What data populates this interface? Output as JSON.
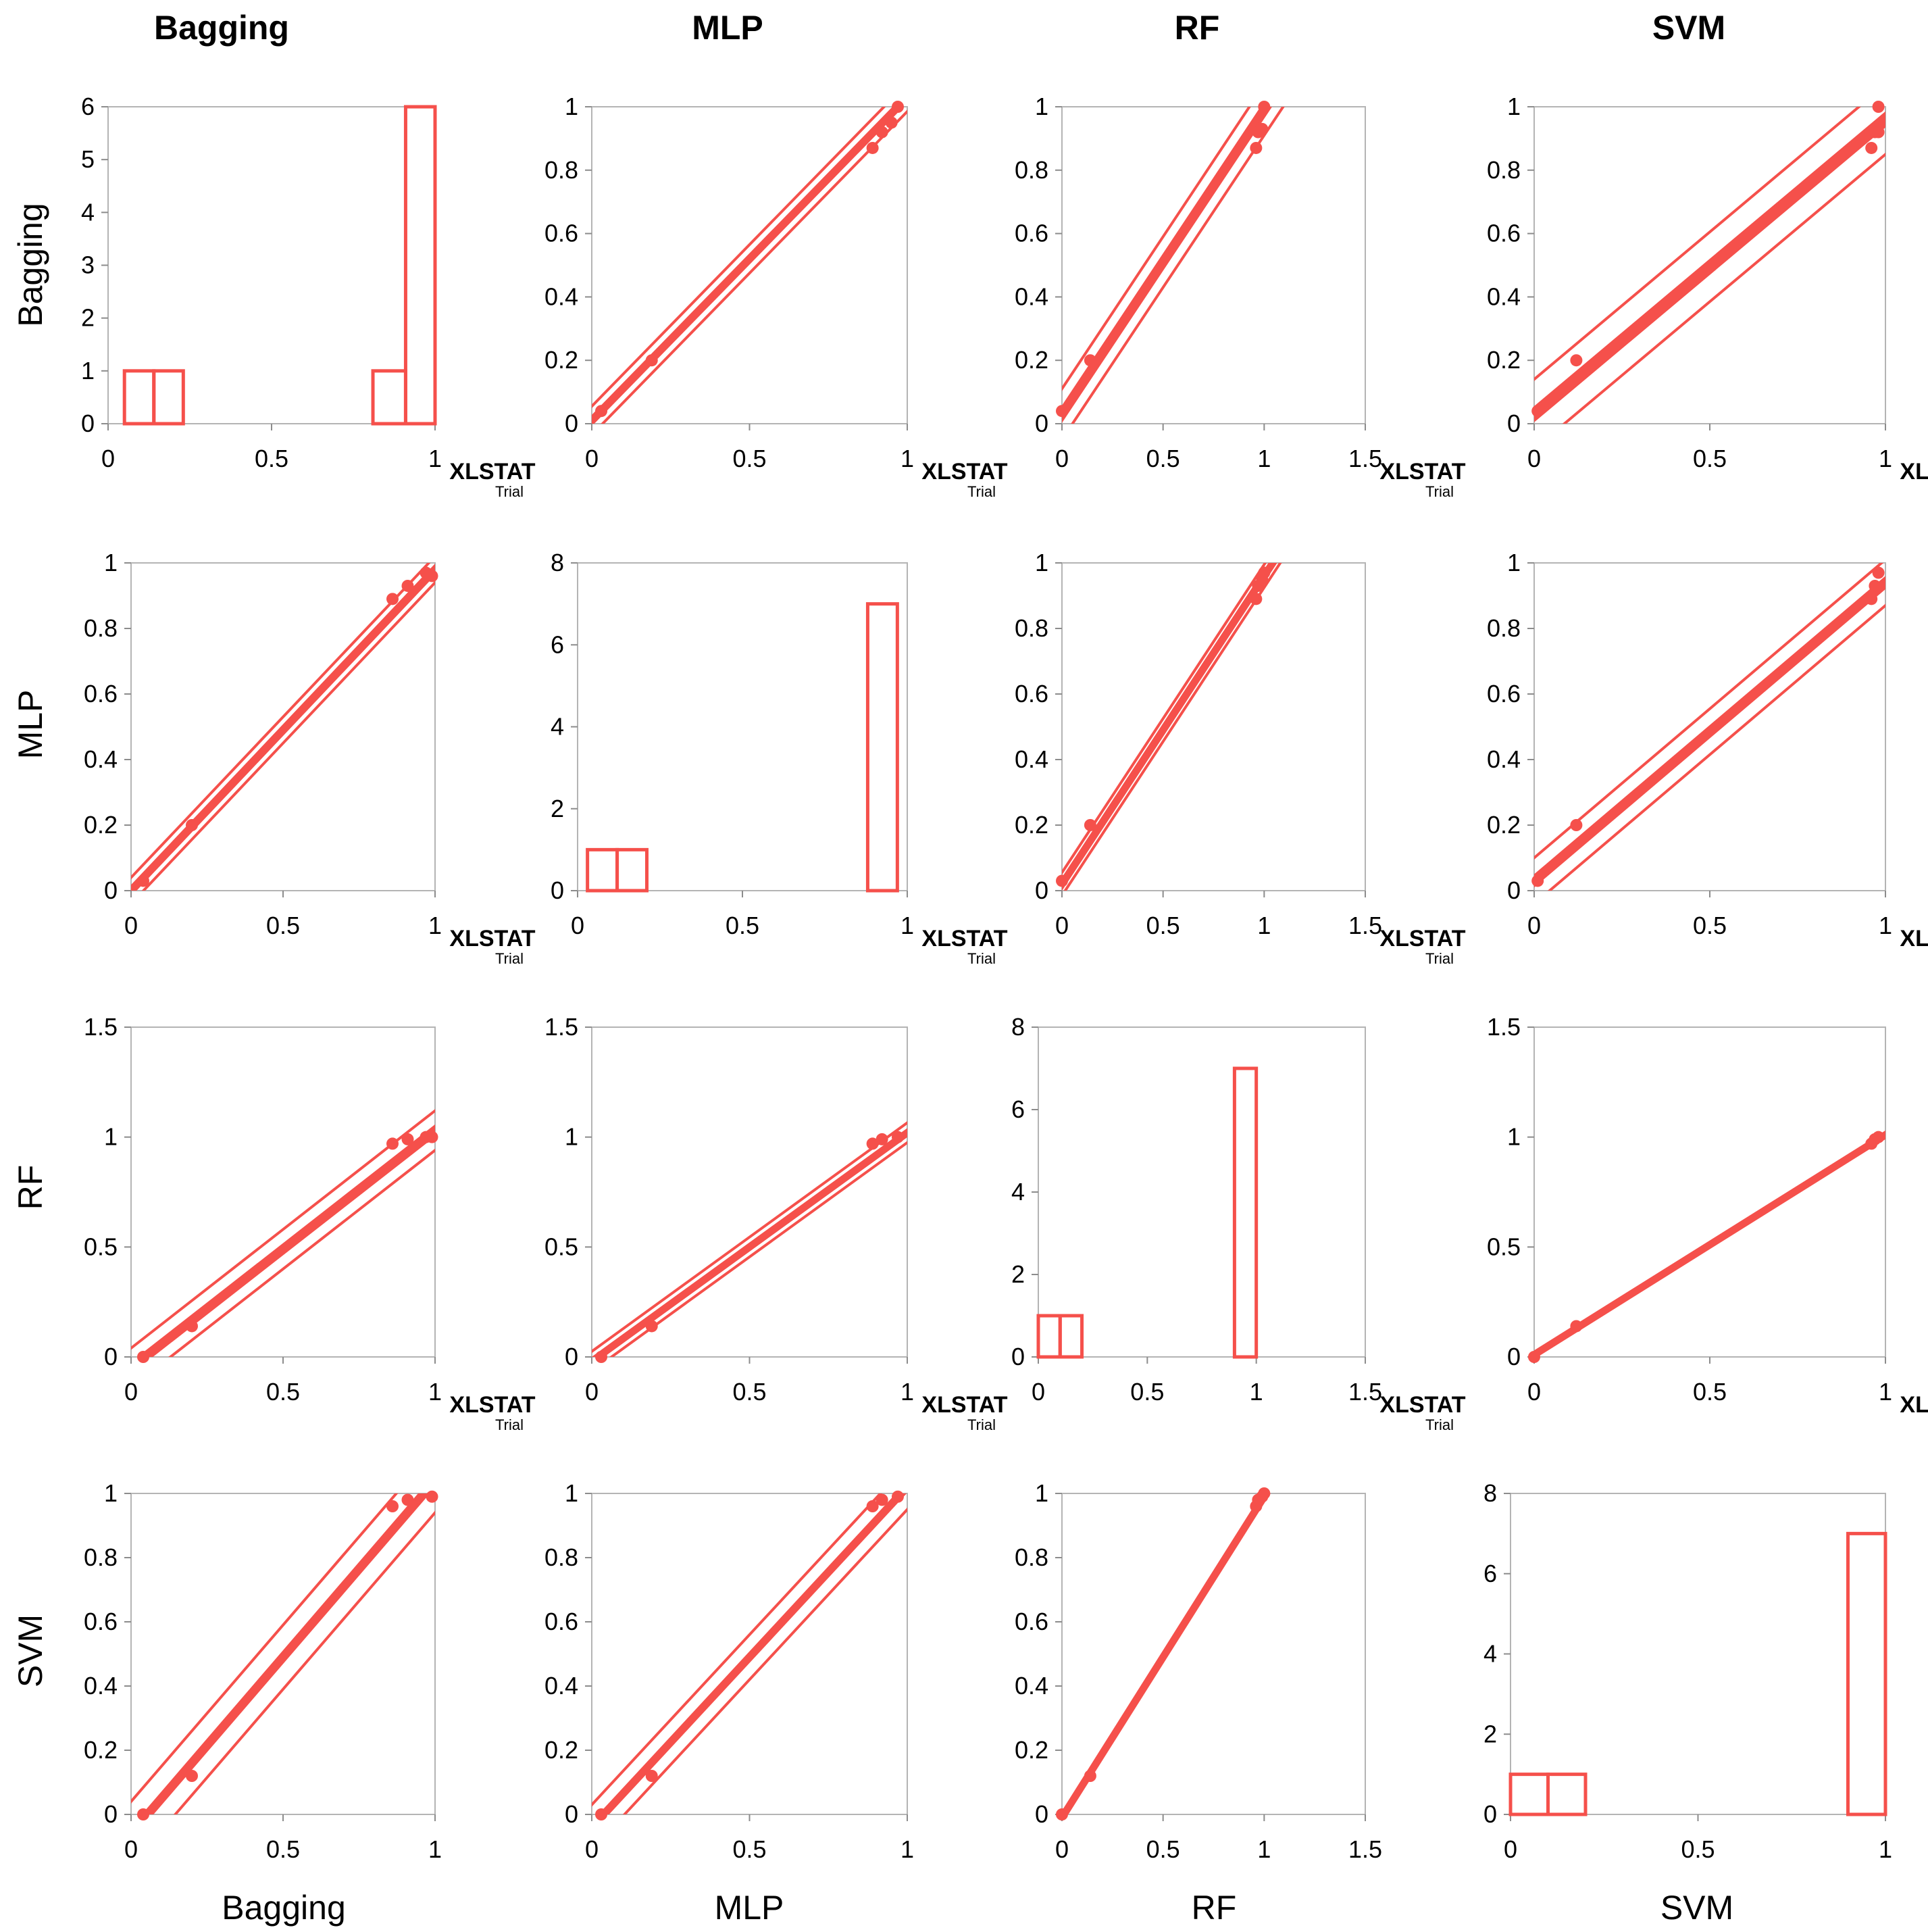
{
  "chart_data": {
    "type": "scatter_matrix",
    "variables": [
      "Bagging",
      "MLP",
      "RF",
      "SVM"
    ],
    "column_titles": [
      "Bagging",
      "MLP",
      "RF",
      "SVM"
    ],
    "row_titles": [
      "Bagging",
      "MLP",
      "RF",
      "SVM"
    ],
    "x_titles": [
      "Bagging",
      "MLP",
      "RF",
      "SVM"
    ],
    "color": "#f5504b",
    "watermark": {
      "line1": "XLSTAT",
      "line2": "Trial"
    },
    "panels": [
      {
        "row": 0,
        "col": 0,
        "type": "histogram",
        "xlim": [
          0,
          1
        ],
        "xticks": [
          0,
          0.5,
          1
        ],
        "xtick_labels": [
          "0",
          "0.5",
          "1"
        ],
        "ylim": [
          0,
          6
        ],
        "yticks": [
          0,
          1,
          2,
          3,
          4,
          5,
          6
        ],
        "ytick_labels": [
          "0",
          "1",
          "2",
          "3",
          "4",
          "5",
          "6"
        ],
        "bins": [
          [
            0.05,
            0.14,
            1
          ],
          [
            0.14,
            0.23,
            1
          ],
          [
            0.23,
            0.81,
            0
          ],
          [
            0.81,
            0.91,
            1
          ],
          [
            0.91,
            1.0,
            6
          ]
        ]
      },
      {
        "row": 0,
        "col": 1,
        "type": "scatter",
        "xlim": [
          0,
          1
        ],
        "xticks": [
          0,
          0.5,
          1
        ],
        "xtick_labels": [
          "0",
          "0.5",
          "1"
        ],
        "ylim": [
          0,
          1
        ],
        "yticks": [
          0,
          0.2,
          0.4,
          0.6,
          0.8,
          1
        ],
        "ytick_labels": [
          "0",
          "0.2",
          "0.4",
          "0.6",
          "0.8",
          "1"
        ],
        "points": [
          [
            0.03,
            0.04
          ],
          [
            0.19,
            0.2
          ],
          [
            0.89,
            0.87
          ],
          [
            0.92,
            0.92
          ],
          [
            0.95,
            0.95
          ],
          [
            0.97,
            1.0
          ]
        ],
        "fit": {
          "slope": 1.02,
          "intercept": 0.01
        },
        "conf_band": 0.012,
        "pred_band": 0.045
      },
      {
        "row": 0,
        "col": 2,
        "type": "scatter",
        "xlim": [
          0,
          1.5
        ],
        "xticks": [
          0,
          0.5,
          1,
          1.5
        ],
        "xtick_labels": [
          "0",
          "0.5",
          "1",
          "1.5"
        ],
        "ylim": [
          0,
          1
        ],
        "yticks": [
          0,
          0.2,
          0.4,
          0.6,
          0.8,
          1
        ],
        "ytick_labels": [
          "0",
          "0.2",
          "0.4",
          "0.6",
          "0.8",
          "1"
        ],
        "points": [
          [
            0.0,
            0.04
          ],
          [
            0.14,
            0.2
          ],
          [
            0.96,
            0.87
          ],
          [
            0.97,
            0.92
          ],
          [
            0.99,
            0.93
          ],
          [
            1.0,
            1.0
          ]
        ],
        "fit": {
          "slope": 0.96,
          "intercept": 0.03
        },
        "conf_band": 0.02,
        "pred_band": 0.08
      },
      {
        "row": 0,
        "col": 3,
        "type": "scatter",
        "xlim": [
          0,
          1
        ],
        "xticks": [
          0,
          0.5,
          1
        ],
        "xtick_labels": [
          "0",
          "0.5",
          "1"
        ],
        "ylim": [
          0,
          1
        ],
        "yticks": [
          0,
          0.2,
          0.4,
          0.6,
          0.8,
          1
        ],
        "ytick_labels": [
          "0",
          "0.2",
          "0.4",
          "0.6",
          "0.8",
          "1"
        ],
        "points": [
          [
            0.01,
            0.04
          ],
          [
            0.12,
            0.2
          ],
          [
            0.96,
            0.87
          ],
          [
            0.97,
            0.92
          ],
          [
            0.98,
            0.92
          ],
          [
            0.98,
            1.0
          ]
        ],
        "fit": {
          "slope": 0.93,
          "intercept": 0.03
        },
        "conf_band": 0.02,
        "pred_band": 0.11
      },
      {
        "row": 1,
        "col": 0,
        "type": "scatter",
        "xlim": [
          0,
          1
        ],
        "xticks": [
          0,
          0.5,
          1
        ],
        "xtick_labels": [
          "0",
          "0.5",
          "1"
        ],
        "ylim": [
          0,
          1
        ],
        "yticks": [
          0,
          0.2,
          0.4,
          0.6,
          0.8,
          1
        ],
        "ytick_labels": [
          "0",
          "0.2",
          "0.4",
          "0.6",
          "0.8",
          "1"
        ],
        "points": [
          [
            0.04,
            0.03
          ],
          [
            0.2,
            0.2
          ],
          [
            0.86,
            0.89
          ],
          [
            0.91,
            0.93
          ],
          [
            0.97,
            0.97
          ],
          [
            0.99,
            0.96
          ]
        ],
        "fit": {
          "slope": 0.98,
          "intercept": 0.0
        },
        "conf_band": 0.012,
        "pred_band": 0.04
      },
      {
        "row": 1,
        "col": 1,
        "type": "histogram",
        "xlim": [
          0,
          1
        ],
        "xticks": [
          0,
          0.5,
          1
        ],
        "xtick_labels": [
          "0",
          "0.5",
          "1"
        ],
        "ylim": [
          0,
          8
        ],
        "yticks": [
          0,
          2,
          4,
          6,
          8
        ],
        "ytick_labels": [
          "0",
          "2",
          "4",
          "6",
          "8"
        ],
        "bins": [
          [
            0.03,
            0.12,
            1
          ],
          [
            0.12,
            0.21,
            1
          ],
          [
            0.21,
            0.88,
            0
          ],
          [
            0.88,
            0.97,
            7
          ]
        ]
      },
      {
        "row": 1,
        "col": 2,
        "type": "scatter",
        "xlim": [
          0,
          1.5
        ],
        "xticks": [
          0,
          0.5,
          1,
          1.5
        ],
        "xtick_labels": [
          "0",
          "0.5",
          "1",
          "1.5"
        ],
        "ylim": [
          0,
          1
        ],
        "yticks": [
          0,
          0.2,
          0.4,
          0.6,
          0.8,
          1
        ],
        "ytick_labels": [
          "0",
          "0.2",
          "0.4",
          "0.6",
          "0.8",
          "1"
        ],
        "points": [
          [
            0.0,
            0.03
          ],
          [
            0.14,
            0.2
          ],
          [
            0.96,
            0.89
          ],
          [
            0.97,
            0.93
          ],
          [
            0.99,
            0.95
          ],
          [
            1.0,
            0.97
          ]
        ],
        "fit": {
          "slope": 0.94,
          "intercept": 0.02
        },
        "conf_band": 0.01,
        "pred_band": 0.035
      },
      {
        "row": 1,
        "col": 3,
        "type": "scatter",
        "xlim": [
          0,
          1
        ],
        "xticks": [
          0,
          0.5,
          1
        ],
        "xtick_labels": [
          "0",
          "0.5",
          "1"
        ],
        "ylim": [
          0,
          1
        ],
        "yticks": [
          0,
          0.2,
          0.4,
          0.6,
          0.8,
          1
        ],
        "ytick_labels": [
          "0",
          "0.2",
          "0.4",
          "0.6",
          "0.8",
          "1"
        ],
        "points": [
          [
            0.01,
            0.03
          ],
          [
            0.12,
            0.2
          ],
          [
            0.96,
            0.89
          ],
          [
            0.97,
            0.93
          ],
          [
            0.98,
            0.97
          ]
        ],
        "fit": {
          "slope": 0.91,
          "intercept": 0.03
        },
        "conf_band": 0.015,
        "pred_band": 0.07
      },
      {
        "row": 2,
        "col": 0,
        "type": "scatter",
        "xlim": [
          0,
          1
        ],
        "xticks": [
          0,
          0.5,
          1
        ],
        "xtick_labels": [
          "0",
          "0.5",
          "1"
        ],
        "ylim": [
          0,
          1.5
        ],
        "yticks": [
          0,
          0.5,
          1,
          1.5
        ],
        "ytick_labels": [
          "0",
          "0.5",
          "1",
          "1.5"
        ],
        "points": [
          [
            0.04,
            0.0
          ],
          [
            0.2,
            0.14
          ],
          [
            0.86,
            0.97
          ],
          [
            0.91,
            0.99
          ],
          [
            0.97,
            1.0
          ],
          [
            0.99,
            1.0
          ]
        ],
        "fit": {
          "slope": 1.08,
          "intercept": -0.05
        },
        "conf_band": 0.02,
        "pred_band": 0.09
      },
      {
        "row": 2,
        "col": 1,
        "type": "scatter",
        "xlim": [
          0,
          1
        ],
        "xticks": [
          0,
          0.5,
          1
        ],
        "xtick_labels": [
          "0",
          "0.5",
          "1"
        ],
        "ylim": [
          0,
          1.5
        ],
        "yticks": [
          0,
          0.5,
          1,
          1.5
        ],
        "ytick_labels": [
          "0",
          "0.5",
          "1",
          "1.5"
        ],
        "points": [
          [
            0.03,
            0.0
          ],
          [
            0.19,
            0.14
          ],
          [
            0.89,
            0.97
          ],
          [
            0.92,
            0.99
          ],
          [
            0.97,
            1.0
          ]
        ],
        "fit": {
          "slope": 1.04,
          "intercept": -0.02
        },
        "conf_band": 0.012,
        "pred_band": 0.045
      },
      {
        "row": 2,
        "col": 2,
        "type": "histogram",
        "xlim": [
          0,
          1.5
        ],
        "xticks": [
          0,
          0.5,
          1,
          1.5
        ],
        "xtick_labels": [
          "0",
          "0.5",
          "1",
          "1.5"
        ],
        "ylim": [
          0,
          8
        ],
        "yticks": [
          0,
          2,
          4,
          6,
          8
        ],
        "ytick_labels": [
          "0",
          "2",
          "4",
          "6",
          "8"
        ],
        "bins": [
          [
            0.0,
            0.1,
            1
          ],
          [
            0.1,
            0.2,
            1
          ],
          [
            0.2,
            0.9,
            0
          ],
          [
            0.9,
            1.0,
            7
          ]
        ]
      },
      {
        "row": 2,
        "col": 3,
        "type": "scatter",
        "xlim": [
          0,
          1
        ],
        "xticks": [
          0,
          0.5,
          1
        ],
        "xtick_labels": [
          "0",
          "0.5",
          "1"
        ],
        "ylim": [
          0,
          1.5
        ],
        "yticks": [
          0,
          0.5,
          1,
          1.5
        ],
        "ytick_labels": [
          "0",
          "0.5",
          "1",
          "1.5"
        ],
        "points": [
          [
            0.0,
            0.0
          ],
          [
            0.12,
            0.14
          ],
          [
            0.96,
            0.97
          ],
          [
            0.97,
            0.99
          ],
          [
            0.98,
            1.0
          ]
        ],
        "fit": {
          "slope": 1.0,
          "intercept": 0.01
        },
        "conf_band": 0.004,
        "pred_band": 0.012
      },
      {
        "row": 3,
        "col": 0,
        "type": "scatter",
        "xlim": [
          0,
          1
        ],
        "xticks": [
          0,
          0.5,
          1
        ],
        "xtick_labels": [
          "0",
          "0.5",
          "1"
        ],
        "ylim": [
          0,
          1
        ],
        "yticks": [
          0,
          0.2,
          0.4,
          0.6,
          0.8,
          1
        ],
        "ytick_labels": [
          "0",
          "0.2",
          "0.4",
          "0.6",
          "0.8",
          "1"
        ],
        "points": [
          [
            0.04,
            0.0
          ],
          [
            0.2,
            0.12
          ],
          [
            0.86,
            0.96
          ],
          [
            0.91,
            0.98
          ],
          [
            0.99,
            0.99
          ]
        ],
        "fit": {
          "slope": 1.1,
          "intercept": -0.06
        },
        "conf_band": 0.015,
        "pred_band": 0.1
      },
      {
        "row": 3,
        "col": 1,
        "type": "scatter",
        "xlim": [
          0,
          1
        ],
        "xticks": [
          0,
          0.5,
          1
        ],
        "xtick_labels": [
          "0",
          "0.5",
          "1"
        ],
        "ylim": [
          0,
          1
        ],
        "yticks": [
          0,
          0.2,
          0.4,
          0.6,
          0.8,
          1
        ],
        "ytick_labels": [
          "0",
          "0.2",
          "0.4",
          "0.6",
          "0.8",
          "1"
        ],
        "points": [
          [
            0.03,
            0.0
          ],
          [
            0.19,
            0.12
          ],
          [
            0.89,
            0.96
          ],
          [
            0.92,
            0.98
          ],
          [
            0.97,
            0.99
          ]
        ],
        "fit": {
          "slope": 1.06,
          "intercept": -0.04
        },
        "conf_band": 0.012,
        "pred_band": 0.07
      },
      {
        "row": 3,
        "col": 2,
        "type": "scatter",
        "xlim": [
          0,
          1.5
        ],
        "xticks": [
          0,
          0.5,
          1,
          1.5
        ],
        "xtick_labels": [
          "0",
          "0.5",
          "1",
          "1.5"
        ],
        "ylim": [
          0,
          1
        ],
        "yticks": [
          0,
          0.2,
          0.4,
          0.6,
          0.8,
          1
        ],
        "ytick_labels": [
          "0",
          "0.2",
          "0.4",
          "0.6",
          "0.8",
          "1"
        ],
        "points": [
          [
            0.0,
            0.0
          ],
          [
            0.14,
            0.12
          ],
          [
            0.96,
            0.96
          ],
          [
            0.97,
            0.98
          ],
          [
            0.99,
            0.99
          ],
          [
            1.0,
            1.0
          ]
        ],
        "fit": {
          "slope": 1.0,
          "intercept": -0.01
        },
        "conf_band": 0.004,
        "pred_band": 0.012
      },
      {
        "row": 3,
        "col": 3,
        "type": "histogram",
        "xlim": [
          0,
          1
        ],
        "xticks": [
          0,
          0.5,
          1
        ],
        "xtick_labels": [
          "0",
          "0.5",
          "1"
        ],
        "ylim": [
          0,
          8
        ],
        "yticks": [
          0,
          2,
          4,
          6,
          8
        ],
        "ytick_labels": [
          "0",
          "2",
          "4",
          "6",
          "8"
        ],
        "bins": [
          [
            0.0,
            0.1,
            1
          ],
          [
            0.1,
            0.2,
            1
          ],
          [
            0.2,
            0.9,
            0
          ],
          [
            0.9,
            1.0,
            7
          ]
        ]
      }
    ]
  }
}
